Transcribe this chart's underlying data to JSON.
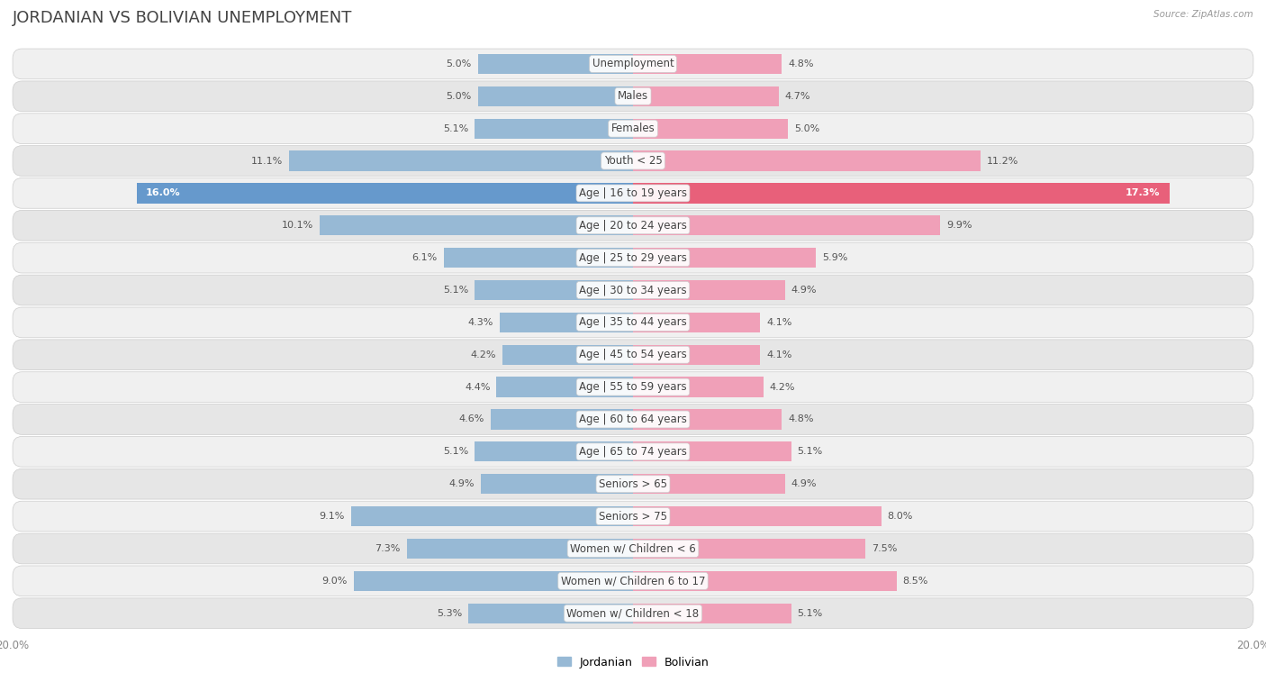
{
  "title": "JORDANIAN VS BOLIVIAN UNEMPLOYMENT",
  "source": "Source: ZipAtlas.com",
  "categories": [
    "Unemployment",
    "Males",
    "Females",
    "Youth < 25",
    "Age | 16 to 19 years",
    "Age | 20 to 24 years",
    "Age | 25 to 29 years",
    "Age | 30 to 34 years",
    "Age | 35 to 44 years",
    "Age | 45 to 54 years",
    "Age | 55 to 59 years",
    "Age | 60 to 64 years",
    "Age | 65 to 74 years",
    "Seniors > 65",
    "Seniors > 75",
    "Women w/ Children < 6",
    "Women w/ Children 6 to 17",
    "Women w/ Children < 18"
  ],
  "jordanian": [
    5.0,
    5.0,
    5.1,
    11.1,
    16.0,
    10.1,
    6.1,
    5.1,
    4.3,
    4.2,
    4.4,
    4.6,
    5.1,
    4.9,
    9.1,
    7.3,
    9.0,
    5.3
  ],
  "bolivian": [
    4.8,
    4.7,
    5.0,
    11.2,
    17.3,
    9.9,
    5.9,
    4.9,
    4.1,
    4.1,
    4.2,
    4.8,
    5.1,
    4.9,
    8.0,
    7.5,
    8.5,
    5.1
  ],
  "jordanian_color": "#97b9d5",
  "bolivian_color": "#f0a0b8",
  "jordanian_highlight_color": "#6699cc",
  "bolivian_highlight_color": "#e8607a",
  "row_bg_color": "#e8e8e8",
  "row_inner_bg_light": "#f5f5f5",
  "row_inner_bg_dark": "#eeeeee",
  "max_val": 20.0,
  "bar_height": 0.62,
  "title_fontsize": 13,
  "label_fontsize": 8.5,
  "value_fontsize": 8,
  "axis_label_fontsize": 8.5,
  "highlight_index": 4
}
